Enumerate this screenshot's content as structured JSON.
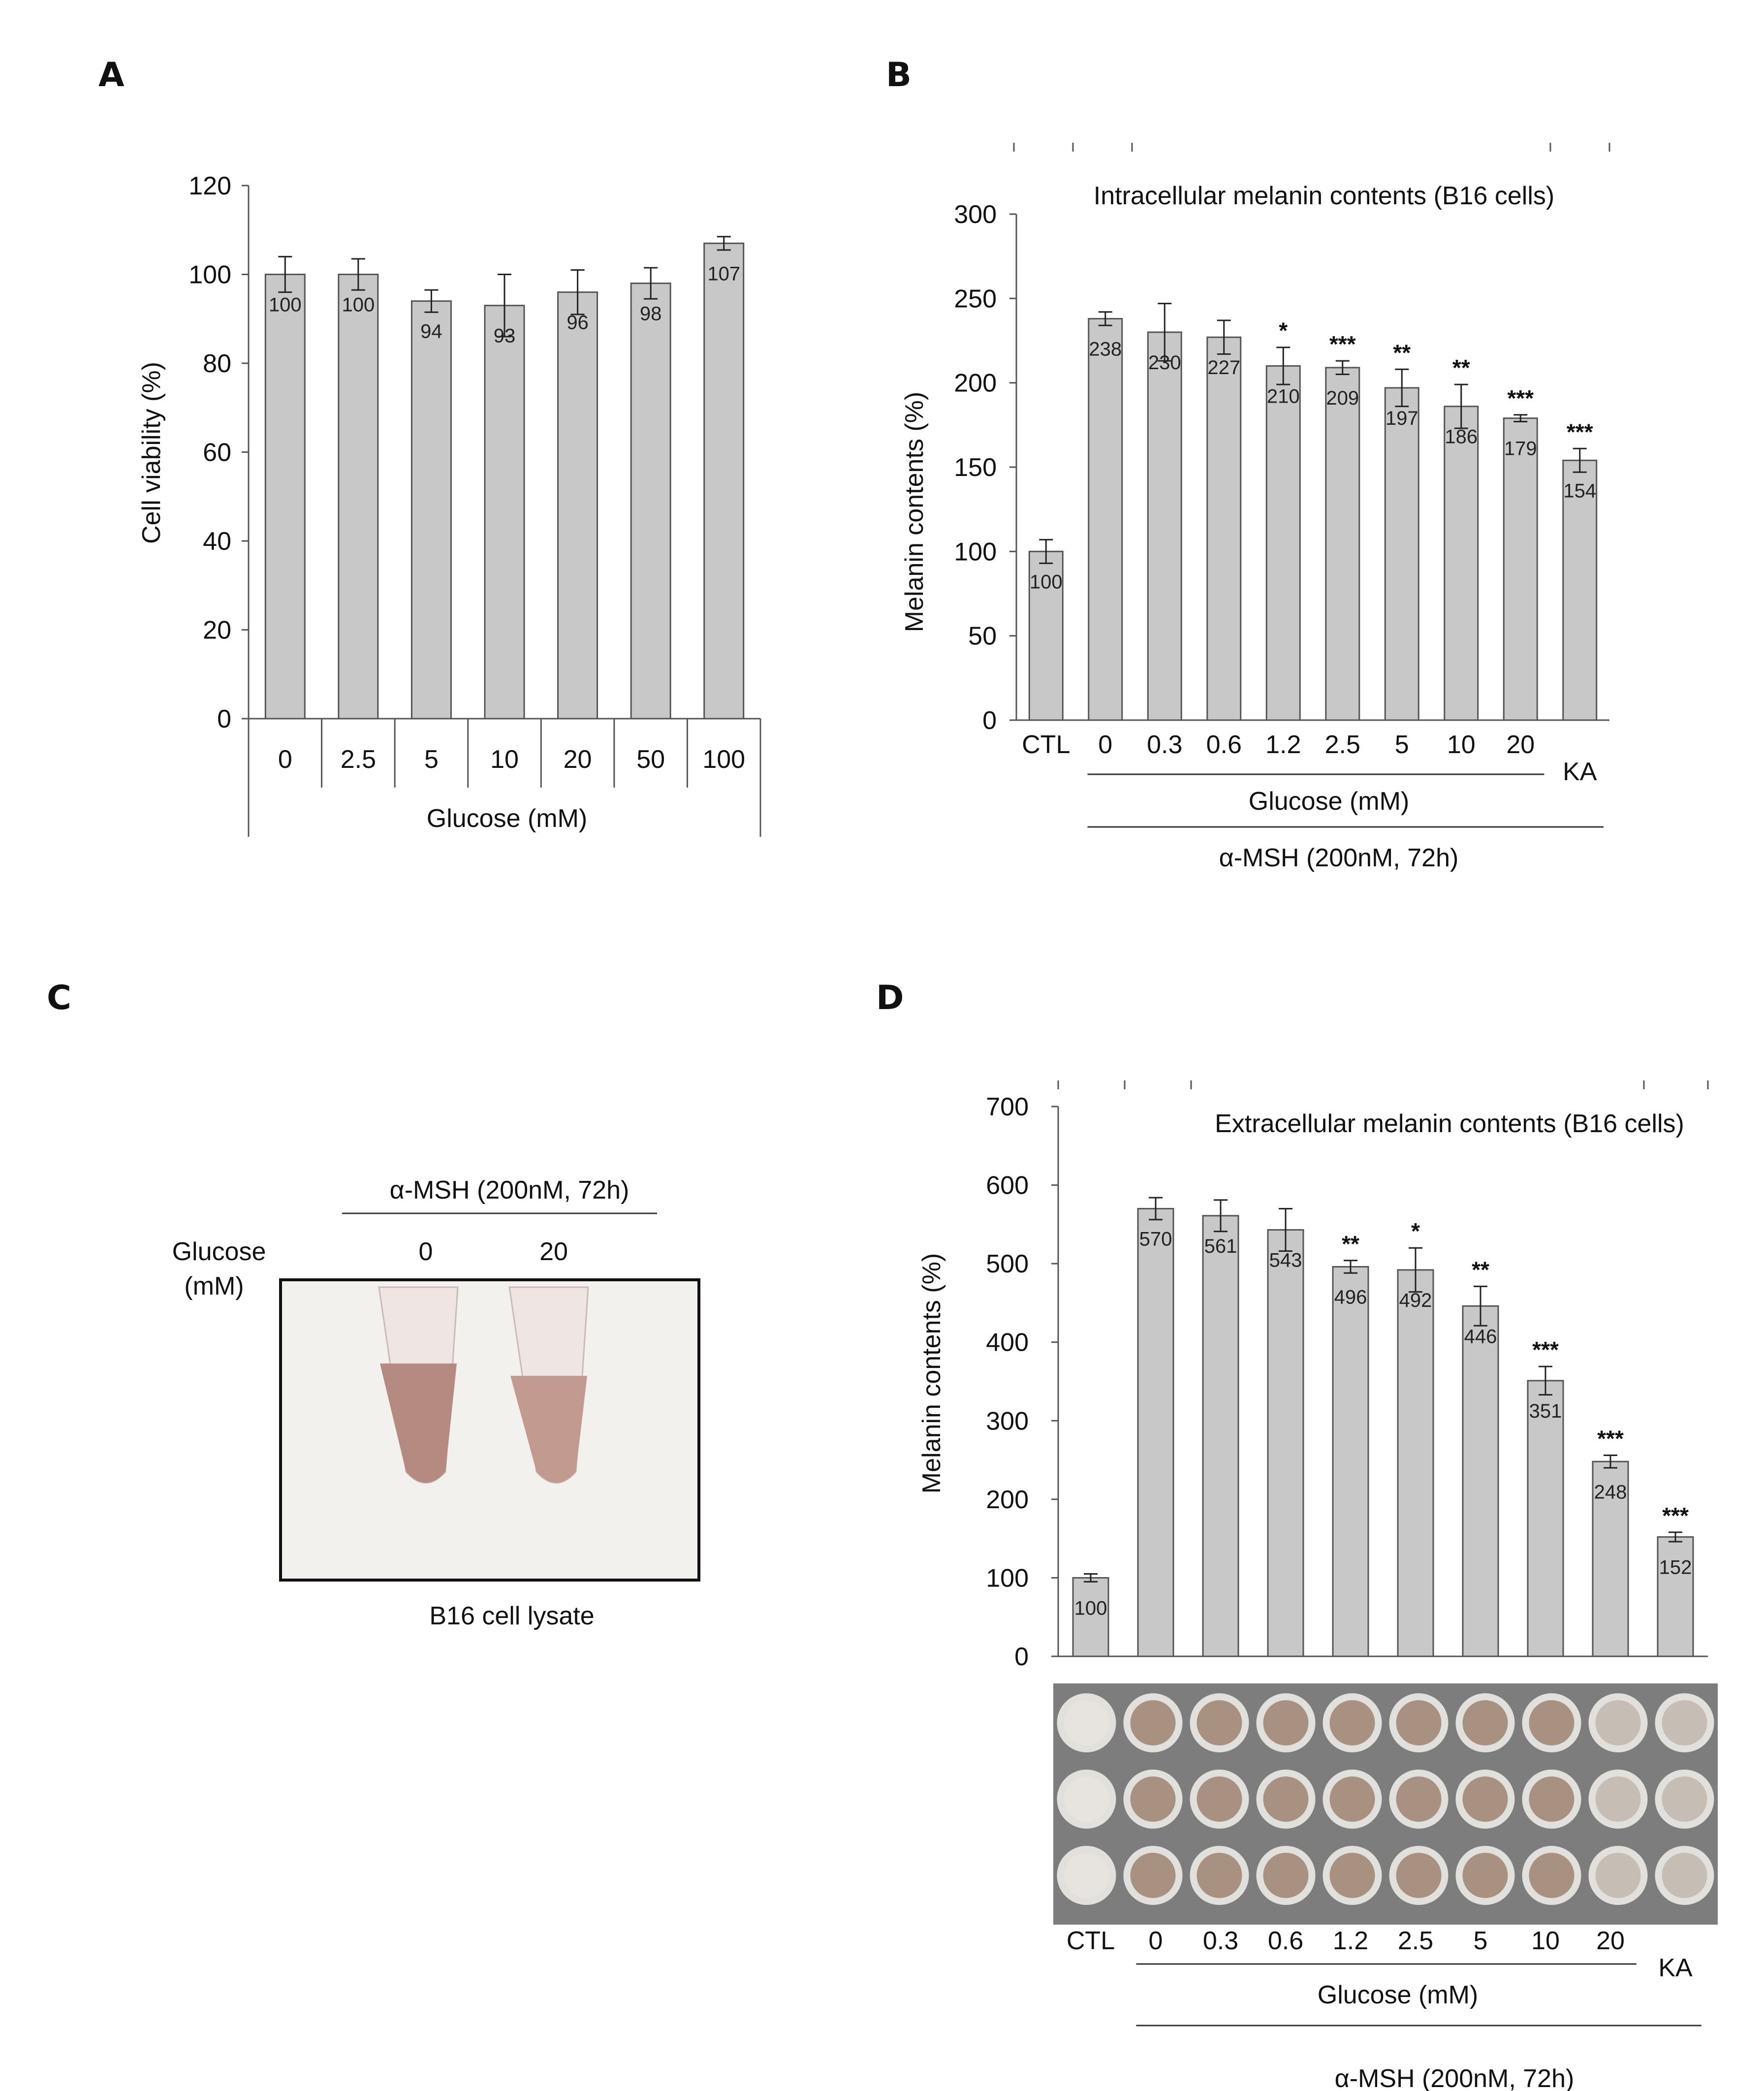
{
  "panels": {
    "a": {
      "label": "A"
    },
    "b": {
      "label": "B"
    },
    "c": {
      "label": "C",
      "treatment": "α-MSH (200nM, 72h)",
      "row_label_line1": "Glucose",
      "row_label_line2": "(mM)",
      "conditions": [
        "0",
        "20"
      ],
      "caption": "B16 cell lysate",
      "colors": {
        "tube_liquid": "#b58a80",
        "background": "#f3f1ee"
      }
    },
    "d": {
      "label": "D"
    }
  },
  "chart_data": [
    {
      "id": "A",
      "type": "bar",
      "ylabel": "Cell viability (%)",
      "xlabel": "Glucose (mM)",
      "categories": [
        "0",
        "2.5",
        "5",
        "10",
        "20",
        "50",
        "100"
      ],
      "values": [
        100,
        100,
        94,
        93,
        96,
        98,
        107
      ],
      "errors": [
        4,
        3.5,
        2.5,
        7,
        5,
        3.5,
        1.5
      ],
      "data_labels": [
        "100",
        "100",
        "94",
        "93",
        "96",
        "98",
        "107"
      ],
      "ylim": [
        0,
        120
      ],
      "yticks": [
        0,
        20,
        40,
        60,
        80,
        100,
        120
      ],
      "colors": {
        "bar": "#c8c8c8"
      }
    },
    {
      "id": "B",
      "type": "bar",
      "title": "Intracellular melanin contents (B16 cells)",
      "ylabel": "Melanin contents (%)",
      "categories": [
        "CTL",
        "0",
        "0.3",
        "0.6",
        "1.2",
        "2.5",
        "5",
        "10",
        "20",
        "KA"
      ],
      "values": [
        100,
        238,
        230,
        227,
        210,
        209,
        197,
        186,
        179,
        154
      ],
      "errors": [
        7,
        4,
        17,
        10,
        11,
        4,
        11,
        13,
        2,
        7
      ],
      "data_labels": [
        "100",
        "238",
        "230",
        "227",
        "210",
        "209",
        "197",
        "186",
        "179",
        "154"
      ],
      "significance": [
        "",
        "",
        "",
        "",
        "*",
        "***",
        "**",
        "**",
        "***",
        "***"
      ],
      "group_label": "Glucose (mM)",
      "treatment_label": "α-MSH (200nM, 72h)",
      "ylim": [
        0,
        300
      ],
      "yticks": [
        0,
        50,
        100,
        150,
        200,
        250,
        300
      ],
      "colors": {
        "bar": "#c8c8c8"
      }
    },
    {
      "id": "D",
      "type": "bar",
      "title": "Extracellular melanin contents (B16 cells)",
      "ylabel": "Melanin contents (%)",
      "categories": [
        "CTL",
        "0",
        "0.3",
        "0.6",
        "1.2",
        "2.5",
        "5",
        "10",
        "20",
        "KA"
      ],
      "values": [
        100,
        570,
        561,
        543,
        496,
        492,
        446,
        351,
        248,
        152
      ],
      "errors": [
        5,
        14,
        20,
        27,
        8,
        28,
        25,
        18,
        8,
        6
      ],
      "data_labels": [
        "100",
        "570",
        "561",
        "543",
        "496",
        "492",
        "446",
        "351",
        "248",
        "152"
      ],
      "significance": [
        "",
        "",
        "",
        "",
        "**",
        "*",
        "**",
        "***",
        "***",
        "***"
      ],
      "group_label": "Glucose (mM)",
      "treatment_label": "α-MSH (200nM, 72h)",
      "ylim": [
        0,
        700
      ],
      "yticks": [
        0,
        100,
        200,
        300,
        400,
        500,
        600,
        700
      ],
      "colors": {
        "bar": "#c8c8c8"
      }
    }
  ]
}
